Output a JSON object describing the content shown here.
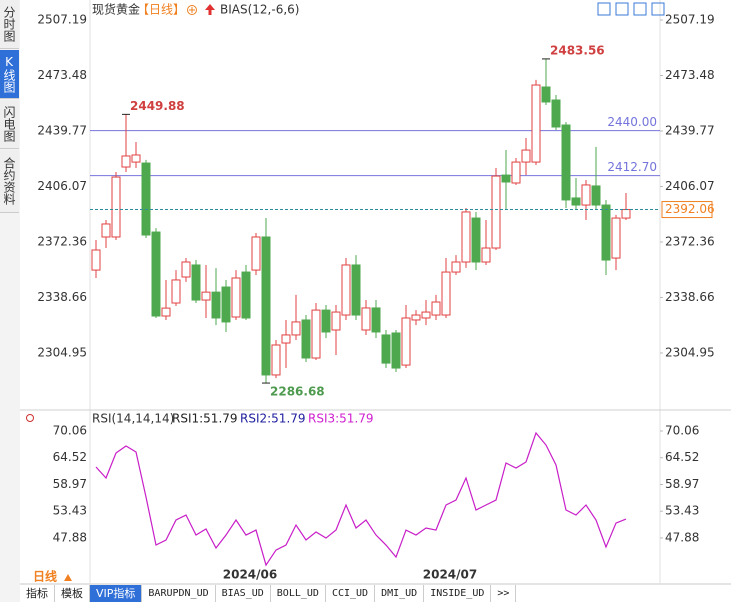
{
  "side_tabs": {
    "items": [
      "分时图",
      "K线图",
      "闪电图",
      "合约资料"
    ],
    "selected": 1
  },
  "bottom_tabs": {
    "items": [
      "指标",
      "模板",
      "VIP指标",
      "BARUPDN_UD",
      "BIAS_UD",
      "BOLL_UD",
      "CCI_UD",
      "DMI_UD",
      "INSIDE_UD",
      ">>"
    ],
    "selected": 2
  },
  "period": "日线",
  "chart_data": [
    {
      "type": "candlestick",
      "title": "现货黄金",
      "subtitle": "【日线】",
      "indicator": "BIAS(12,-6,6)",
      "up_color": "#e04040",
      "down_color": "#4ea84e",
      "open": [
        2355.3,
        2375.4,
        2375.4,
        2417.9,
        2420.9,
        2420.3,
        2378.4,
        2327.4,
        2335.3,
        2351.1,
        2358.4,
        2337.1,
        2341.9,
        2345.0,
        2326.8,
        2354.1,
        2355.3,
        2375.4,
        2291.6,
        2311.0,
        2315.9,
        2325.0,
        2301.9,
        2331.0,
        2318.9,
        2328.0,
        2358.4,
        2318.9,
        2332.3,
        2315.9,
        2317.1,
        2297.6,
        2325.0,
        2326.2,
        2328.0,
        2328.0,
        2354.1,
        2360.2,
        2386.9,
        2360.2,
        2368.7,
        2413.0,
        2408.2,
        2420.9,
        2420.9,
        2466.5,
        2458.6,
        2443.4,
        2399.1,
        2394.8,
        2406.4,
        2394.8,
        2362.6,
        2386.9
      ],
      "high": [
        2373.6,
        2385.7,
        2414.9,
        2449.88,
        2433.1,
        2422.2,
        2380.8,
        2349.3,
        2355.3,
        2362.6,
        2361.4,
        2358.4,
        2356.5,
        2349.3,
        2355.3,
        2358.4,
        2377.8,
        2386.9,
        2312.8,
        2325.0,
        2340.2,
        2328.0,
        2335.3,
        2334.1,
        2334.1,
        2362.6,
        2364.4,
        2337.1,
        2337.1,
        2318.9,
        2318.9,
        2334.1,
        2331.0,
        2337.1,
        2340.2,
        2362.6,
        2364.4,
        2393.0,
        2390.6,
        2385.7,
        2417.3,
        2428.2,
        2423.4,
        2435.5,
        2470.8,
        2483.56,
        2461.6,
        2445.2,
        2411.2,
        2410.0,
        2430.1,
        2397.9,
        2388.8,
        2402.1
      ],
      "low": [
        2350.5,
        2368.7,
        2373.6,
        2414.9,
        2417.3,
        2374.8,
        2326.2,
        2325.0,
        2333.5,
        2348.1,
        2335.3,
        2326.2,
        2321.9,
        2317.7,
        2325.0,
        2325.0,
        2352.3,
        2286.68,
        2289.7,
        2295.8,
        2312.8,
        2299.5,
        2300.7,
        2314.0,
        2303.7,
        2325.0,
        2325.0,
        2315.9,
        2314.0,
        2295.8,
        2293.4,
        2295.8,
        2321.9,
        2321.9,
        2325.0,
        2326.2,
        2352.3,
        2356.6,
        2355.3,
        2358.4,
        2367.5,
        2391.8,
        2407.0,
        2413.0,
        2419.1,
        2455.6,
        2440.4,
        2393.0,
        2391.8,
        2385.7,
        2391.8,
        2352.3,
        2355.3,
        2385.7
      ],
      "close": [
        2367.5,
        2383.3,
        2411.8,
        2424.6,
        2425.2,
        2376.6,
        2327.4,
        2332.2,
        2349.3,
        2360.2,
        2337.1,
        2341.9,
        2326.2,
        2323.8,
        2350.5,
        2326.2,
        2375.4,
        2291.6,
        2309.8,
        2315.9,
        2323.8,
        2301.9,
        2331.0,
        2317.7,
        2329.8,
        2358.4,
        2328.0,
        2332.3,
        2317.7,
        2298.8,
        2295.8,
        2326.2,
        2328.0,
        2329.8,
        2335.9,
        2354.1,
        2360.2,
        2390.6,
        2360.2,
        2368.7,
        2412.4,
        2408.8,
        2420.9,
        2428.2,
        2467.7,
        2457.4,
        2442.2,
        2397.9,
        2394.8,
        2407.0,
        2394.8,
        2361.4,
        2386.9,
        2392.06
      ],
      "ylim": [
        2273.35,
        2512.05
      ],
      "yticks": [
        2507.19,
        2473.48,
        2439.77,
        2406.07,
        2372.36,
        2338.66,
        2304.95
      ],
      "hlines": [
        {
          "value": 2440,
          "label": "2440.00",
          "color": "#7474dc"
        },
        {
          "value": 2412.7,
          "label": "2412.70",
          "color": "#7474dc"
        }
      ],
      "last_line_color": "#2c8c9c",
      "last_label_color": "#f08020",
      "annotations": [
        {
          "x": 3,
          "value": 2449.88,
          "color": "#d04040",
          "position": "above"
        },
        {
          "x": 45,
          "value": 2483.56,
          "color": "#d04040",
          "position": "above"
        },
        {
          "x": 17,
          "value": 2286.68,
          "color": "#4e9a4e",
          "position": "below"
        }
      ]
    },
    {
      "type": "line",
      "indicator": "RSI(14,14,14)",
      "legend": [
        {
          "text": "RSI1:51.79",
          "color": "#222222"
        },
        {
          "text": "RSI2:51.79",
          "color": "#2020a0"
        },
        {
          "text": "RSI3:51.79",
          "color": "#d020d0"
        }
      ],
      "categories": [
        null,
        null,
        null,
        null,
        null,
        null,
        null,
        null,
        null,
        null,
        null,
        null,
        null,
        null,
        null,
        "2024/06",
        null,
        null,
        null,
        null,
        null,
        null,
        null,
        null,
        null,
        null,
        null,
        null,
        null,
        null,
        null,
        null,
        null,
        null,
        null,
        "2024/07",
        null,
        null,
        null,
        null,
        null,
        null,
        null,
        null,
        null,
        null,
        null,
        null,
        null,
        null,
        null,
        null,
        null,
        null
      ],
      "series": [
        {
          "color": "#c81ec8",
          "values": [
            62.59,
            60.31,
            65.5,
            66.95,
            65.7,
            56.37,
            46.41,
            47.45,
            51.6,
            52.63,
            48.48,
            49.73,
            45.79,
            48.48,
            51.6,
            48.48,
            49.52,
            42.26,
            45.37,
            46.41,
            50.56,
            47.45,
            49.11,
            47.86,
            49.52,
            54.71,
            49.94,
            51.6,
            48.48,
            46.41,
            43.92,
            49.52,
            48.48,
            49.94,
            49.52,
            54.71,
            55.74,
            60.31,
            53.67,
            54.71,
            55.74,
            63.42,
            62.38,
            63.63,
            69.65,
            67.15,
            63.01,
            53.67,
            52.63,
            54.71,
            51.6,
            46.0,
            50.97,
            51.79
          ]
        }
      ],
      "ylim": [
        41.5,
        72.34
      ],
      "yticks": [
        70.06,
        64.52,
        58.97,
        53.43,
        47.88
      ]
    }
  ]
}
